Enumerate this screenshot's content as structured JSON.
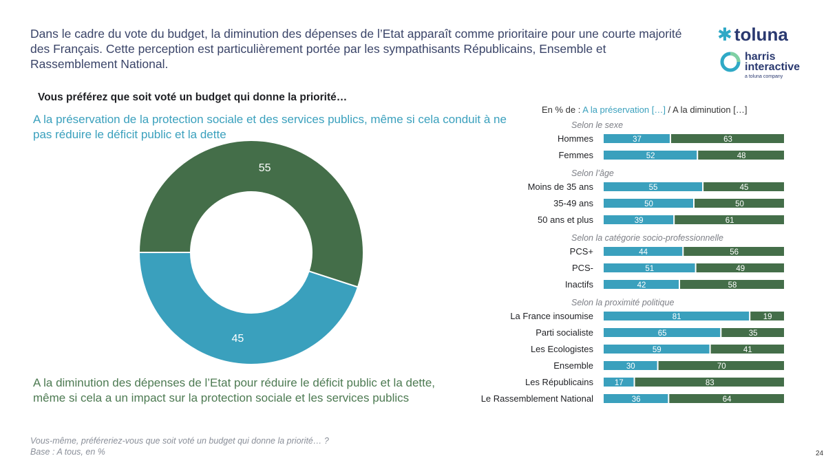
{
  "headline": "Dans le cadre du vote du budget, la diminution des dépenses de l’Etat apparaît comme prioritaire pour une courte majorité des Français. Cette perception est particulièrement portée par les sympathisants Républicains, Ensemble et Rassemblement National.",
  "logo": {
    "brand1": "toluna",
    "brand2_line1": "harris",
    "brand2_line2": "interactive",
    "tagline": "a toluna company"
  },
  "question": "Vous préférez que soit voté un budget qui donne la priorité…",
  "option_a": "A la préservation de la protection sociale et des services publics, même si cela conduit à ne pas réduire le déficit public et la dette",
  "option_b": "A la diminution des dépenses de l’Etat pour réduire le déficit public et la dette, même si cela a un impact sur la protection sociale et les services publics",
  "legend": {
    "prefix": "En % de : ",
    "a_label": "A la préservation […]",
    "sep": " / ",
    "b_label": "A la diminution […]"
  },
  "footnote": {
    "line1": "Vous-même, préféreriez-vous que soit voté un budget qui donne la priorité… ?",
    "line2": "Base : A tous, en %"
  },
  "page_number": "24",
  "colors": {
    "blue": "#3aa0bd",
    "green": "#446e49",
    "text_dark": "#1f2024",
    "group_label": "#7d7f86"
  },
  "chart_data": [
    {
      "type": "pie",
      "variant": "donut",
      "title": "Vous préférez que soit voté un budget qui donne la priorité…",
      "categories": [
        "A la préservation […]",
        "A la diminution […]"
      ],
      "values": [
        45,
        55
      ],
      "colors": [
        "#3aa0bd",
        "#446e49"
      ]
    },
    {
      "type": "bar",
      "orientation": "horizontal",
      "stacked": true,
      "xlim": [
        0,
        100
      ],
      "series": [
        {
          "name": "A la préservation […]",
          "color": "#3aa0bd"
        },
        {
          "name": "A la diminution […]",
          "color": "#446e49"
        }
      ],
      "groups": [
        {
          "label": "Selon le sexe",
          "rows": [
            {
              "label": "Hommes",
              "a": 37,
              "b": 63
            },
            {
              "label": "Femmes",
              "a": 52,
              "b": 48
            }
          ]
        },
        {
          "label": "Selon l’âge",
          "rows": [
            {
              "label": "Moins de 35 ans",
              "a": 55,
              "b": 45
            },
            {
              "label": "35-49 ans",
              "a": 50,
              "b": 50
            },
            {
              "label": "50 ans et plus",
              "a": 39,
              "b": 61
            }
          ]
        },
        {
          "label": "Selon la catégorie socio-professionnelle",
          "rows": [
            {
              "label": "PCS+",
              "a": 44,
              "b": 56
            },
            {
              "label": "PCS-",
              "a": 51,
              "b": 49
            },
            {
              "label": "Inactifs",
              "a": 42,
              "b": 58
            }
          ]
        },
        {
          "label": "Selon la proximité politique",
          "rows": [
            {
              "label": "La France insoumise",
              "a": 81,
              "b": 19
            },
            {
              "label": "Parti socialiste",
              "a": 65,
              "b": 35
            },
            {
              "label": "Les Ecologistes",
              "a": 59,
              "b": 41
            },
            {
              "label": "Ensemble",
              "a": 30,
              "b": 70
            },
            {
              "label": "Les Républicains",
              "a": 17,
              "b": 83
            },
            {
              "label": "Le Rassemblement National",
              "a": 36,
              "b": 64
            }
          ]
        }
      ]
    }
  ]
}
